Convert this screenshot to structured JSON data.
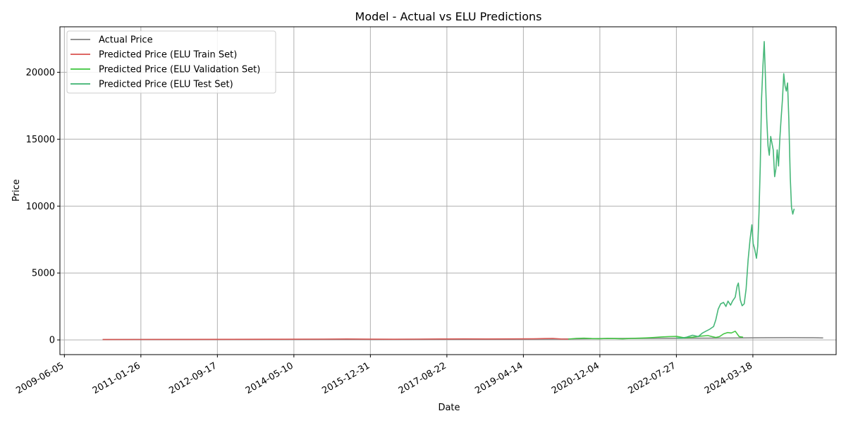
{
  "chart_data": {
    "type": "line",
    "title": "Model - Actual vs ELU Predictions",
    "xlabel": "Date",
    "ylabel": "Price",
    "xlim": [
      "2009-05-01",
      "2025-12-31"
    ],
    "ylim": [
      -1100,
      23400
    ],
    "grid": true,
    "legend_position": "top-left",
    "x_ticks": [
      "2009-06-05",
      "2011-01-26",
      "2012-09-17",
      "2014-05-10",
      "2015-12-31",
      "2017-08-22",
      "2019-04-14",
      "2020-12-04",
      "2022-07-27",
      "2024-03-18"
    ],
    "y_ticks": [
      0,
      5000,
      10000,
      15000,
      20000
    ],
    "series": [
      {
        "name": "Actual Price",
        "color": "#808080",
        "points": [
          [
            "2010-04-01",
            20
          ],
          [
            "2011-01-01",
            25
          ],
          [
            "2012-01-01",
            30
          ],
          [
            "2013-01-01",
            35
          ],
          [
            "2014-01-01",
            40
          ],
          [
            "2015-01-01",
            45
          ],
          [
            "2016-01-01",
            40
          ],
          [
            "2017-01-01",
            45
          ],
          [
            "2018-01-01",
            48
          ],
          [
            "2019-01-01",
            50
          ],
          [
            "2020-01-01",
            60
          ],
          [
            "2020-07-01",
            80
          ],
          [
            "2021-01-01",
            100
          ],
          [
            "2021-07-01",
            105
          ],
          [
            "2022-01-01",
            110
          ],
          [
            "2022-07-01",
            120
          ],
          [
            "2023-01-01",
            130
          ],
          [
            "2023-07-01",
            140
          ],
          [
            "2024-01-01",
            150
          ],
          [
            "2024-07-01",
            160
          ],
          [
            "2025-01-01",
            170
          ],
          [
            "2025-07-01",
            160
          ],
          [
            "2025-09-20",
            150
          ]
        ]
      },
      {
        "name": "Predicted Price (ELU Train Set)",
        "color": "#d9534f",
        "points": [
          [
            "2010-04-01",
            30
          ],
          [
            "2011-01-01",
            35
          ],
          [
            "2012-01-01",
            40
          ],
          [
            "2013-01-01",
            45
          ],
          [
            "2014-01-01",
            50
          ],
          [
            "2015-01-01",
            60
          ],
          [
            "2015-07-01",
            70
          ],
          [
            "2016-01-01",
            55
          ],
          [
            "2016-07-01",
            50
          ],
          [
            "2017-01-01",
            60
          ],
          [
            "2017-07-01",
            70
          ],
          [
            "2018-01-01",
            75
          ],
          [
            "2018-07-01",
            70
          ],
          [
            "2019-01-01",
            75
          ],
          [
            "2019-07-01",
            80
          ],
          [
            "2019-10-01",
            100
          ],
          [
            "2019-12-01",
            110
          ],
          [
            "2020-02-01",
            70
          ],
          [
            "2020-04-01",
            60
          ]
        ]
      },
      {
        "name": "Predicted Price (ELU Validation Set)",
        "color": "#3cc43c",
        "points": [
          [
            "2020-04-01",
            60
          ],
          [
            "2020-06-01",
            110
          ],
          [
            "2020-08-01",
            130
          ],
          [
            "2020-10-01",
            100
          ],
          [
            "2020-12-01",
            90
          ],
          [
            "2021-02-01",
            110
          ],
          [
            "2021-04-01",
            100
          ],
          [
            "2021-06-01",
            80
          ],
          [
            "2021-08-01",
            110
          ],
          [
            "2021-10-01",
            130
          ],
          [
            "2021-12-01",
            150
          ],
          [
            "2022-02-01",
            180
          ],
          [
            "2022-04-01",
            220
          ],
          [
            "2022-06-01",
            250
          ],
          [
            "2022-08-01",
            260
          ],
          [
            "2022-10-01",
            150
          ],
          [
            "2022-12-01",
            200
          ],
          [
            "2023-02-01",
            280
          ],
          [
            "2023-04-01",
            320
          ],
          [
            "2023-05-01",
            250
          ],
          [
            "2023-06-01",
            180
          ],
          [
            "2023-07-01",
            250
          ],
          [
            "2023-08-01",
            450
          ],
          [
            "2023-09-01",
            550
          ],
          [
            "2023-10-01",
            520
          ],
          [
            "2023-11-01",
            650
          ],
          [
            "2023-12-01",
            250
          ],
          [
            "2024-01-01",
            200
          ]
        ]
      },
      {
        "name": "Predicted Price (ELU Test Set)",
        "color": "#3cb371",
        "points": [
          [
            "2022-07-27",
            150
          ],
          [
            "2022-09-01",
            130
          ],
          [
            "2022-10-15",
            200
          ],
          [
            "2022-12-01",
            350
          ],
          [
            "2023-01-15",
            250
          ],
          [
            "2023-02-15",
            500
          ],
          [
            "2023-03-15",
            650
          ],
          [
            "2023-04-15",
            800
          ],
          [
            "2023-05-15",
            1000
          ],
          [
            "2023-06-01",
            1500
          ],
          [
            "2023-06-20",
            2300
          ],
          [
            "2023-07-10",
            2700
          ],
          [
            "2023-08-01",
            2800
          ],
          [
            "2023-08-20",
            2500
          ],
          [
            "2023-09-05",
            2900
          ],
          [
            "2023-09-25",
            2600
          ],
          [
            "2023-10-10",
            2900
          ],
          [
            "2023-11-01",
            3200
          ],
          [
            "2023-11-15",
            4000
          ],
          [
            "2023-11-25",
            4250
          ],
          [
            "2023-12-10",
            3000
          ],
          [
            "2023-12-25",
            2550
          ],
          [
            "2024-01-10",
            2700
          ],
          [
            "2024-01-25",
            3800
          ],
          [
            "2024-02-10",
            6000
          ],
          [
            "2024-02-25",
            7500
          ],
          [
            "2024-03-10",
            8600
          ],
          [
            "2024-03-20",
            7200
          ],
          [
            "2024-04-01",
            6800
          ],
          [
            "2024-04-15",
            6100
          ],
          [
            "2024-04-25",
            7000
          ],
          [
            "2024-05-05",
            9500
          ],
          [
            "2024-05-15",
            13000
          ],
          [
            "2024-05-25",
            18000
          ],
          [
            "2024-06-05",
            20500
          ],
          [
            "2024-06-15",
            22300
          ],
          [
            "2024-06-25",
            19500
          ],
          [
            "2024-07-05",
            16500
          ],
          [
            "2024-07-15",
            14500
          ],
          [
            "2024-07-25",
            13800
          ],
          [
            "2024-08-05",
            15200
          ],
          [
            "2024-08-15",
            14700
          ],
          [
            "2024-08-25",
            14200
          ],
          [
            "2024-09-05",
            12200
          ],
          [
            "2024-09-15",
            12800
          ],
          [
            "2024-09-25",
            14200
          ],
          [
            "2024-10-05",
            13000
          ],
          [
            "2024-10-15",
            15000
          ],
          [
            "2024-10-25",
            16500
          ],
          [
            "2024-11-05",
            18000
          ],
          [
            "2024-11-15",
            19900
          ],
          [
            "2024-11-25",
            19000
          ],
          [
            "2024-12-05",
            18600
          ],
          [
            "2024-12-15",
            19200
          ],
          [
            "2024-12-25",
            16500
          ],
          [
            "2025-01-05",
            12200
          ],
          [
            "2025-01-15",
            9900
          ],
          [
            "2025-01-25",
            9400
          ],
          [
            "2025-02-05",
            9800
          ]
        ]
      }
    ]
  }
}
